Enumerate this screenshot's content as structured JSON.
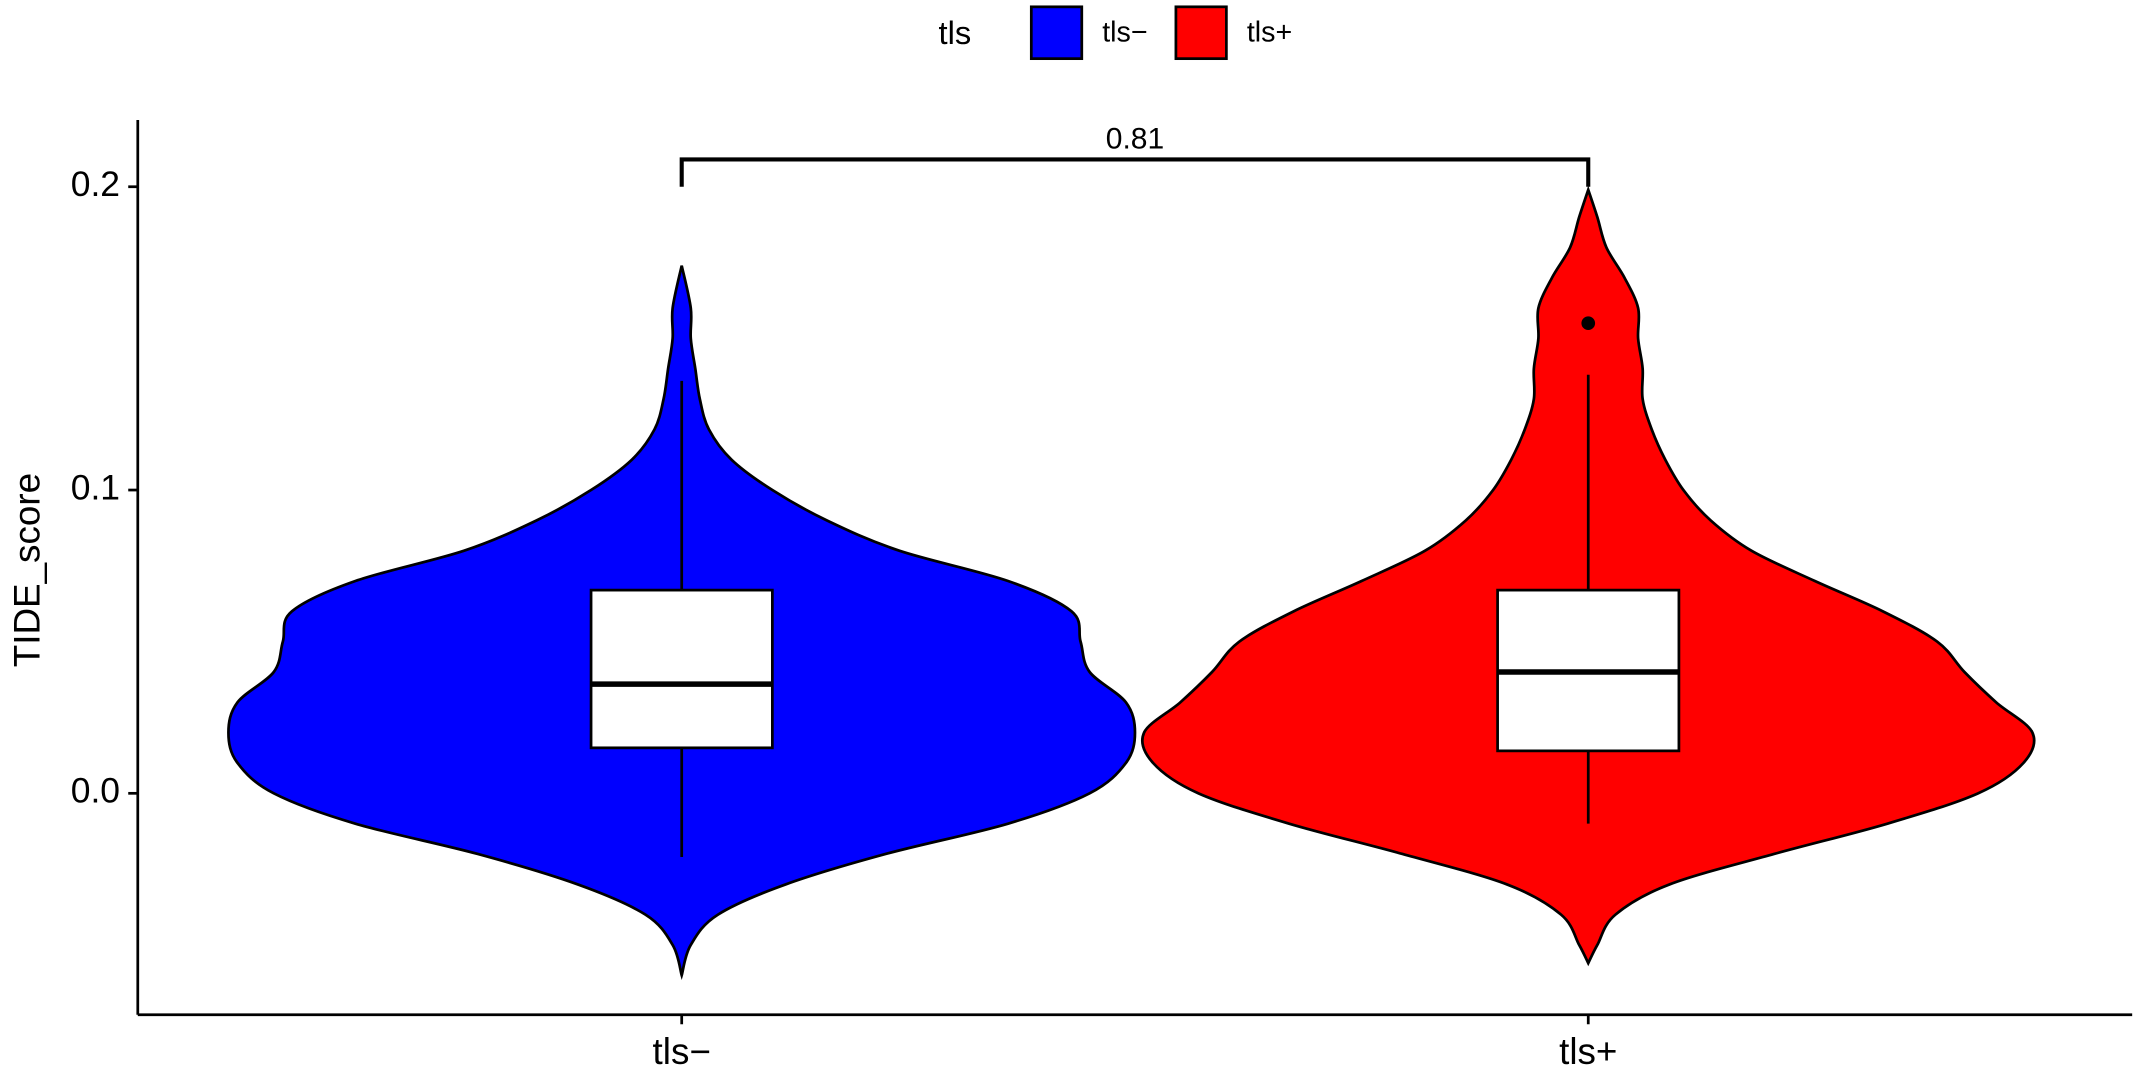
{
  "chart_data": {
    "type": "violin",
    "legend": {
      "title": "tls",
      "position": "top"
    },
    "y_label": "TIDE_score",
    "categories": [
      "tls−",
      "tls+"
    ],
    "ylim": [
      -0.073,
      0.222
    ],
    "yticks": [
      {
        "value": 0,
        "label": "0.0"
      },
      0.1,
      0.2
    ],
    "series": [
      {
        "name": "tls−",
        "color": "#0000ff",
        "violin": {
          "y": [
            -0.06,
            -0.05,
            -0.04,
            -0.03,
            -0.02,
            -0.01,
            0,
            0.01,
            0.02,
            0.03,
            0.04,
            0.05,
            0.06,
            0.07,
            0.08,
            0.09,
            0.1,
            0.11,
            0.12,
            0.13,
            0.14,
            0.15,
            0.16,
            0.174
          ],
          "density": [
            0,
            0.02,
            0.08,
            0.23,
            0.45,
            0.72,
            0.9,
            0.98,
            1.0,
            0.98,
            0.9,
            0.88,
            0.86,
            0.72,
            0.48,
            0.32,
            0.2,
            0.11,
            0.06,
            0.04,
            0.03,
            0.02,
            0.02,
            0
          ]
        },
        "box": {
          "whisker_low": -0.021,
          "q1": 0.015,
          "median": 0.036,
          "q3": 0.067,
          "whisker_high": 0.136
        },
        "outliers": []
      },
      {
        "name": "tls+",
        "color": "#ff0000",
        "violin": {
          "y": [
            -0.056,
            -0.05,
            -0.04,
            -0.03,
            -0.02,
            -0.01,
            0,
            0.01,
            0.02,
            0.03,
            0.04,
            0.05,
            0.06,
            0.07,
            0.08,
            0.09,
            0.1,
            0.11,
            0.12,
            0.13,
            0.14,
            0.15,
            0.16,
            0.17,
            0.18,
            0.19,
            0.199
          ],
          "density": [
            0,
            0.02,
            0.06,
            0.18,
            0.41,
            0.66,
            0.86,
            0.96,
            0.98,
            0.9,
            0.83,
            0.77,
            0.65,
            0.5,
            0.36,
            0.27,
            0.21,
            0.17,
            0.14,
            0.12,
            0.12,
            0.11,
            0.11,
            0.08,
            0.04,
            0.02,
            0
          ]
        },
        "box": {
          "whisker_low": -0.01,
          "q1": 0.014,
          "median": 0.04,
          "q3": 0.067,
          "whisker_high": 0.138
        },
        "outliers": [
          0.155
        ]
      }
    ],
    "comparison": {
      "label": "0.81",
      "y": 0.209,
      "tip": 0.2
    }
  }
}
